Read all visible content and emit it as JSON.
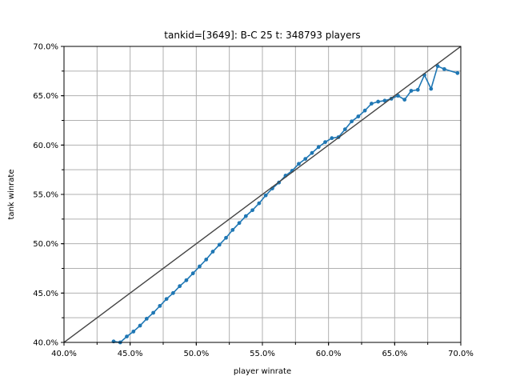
{
  "chart_data": {
    "type": "line",
    "title": "tankid=[3649]: B-C 25 t: 348793 players",
    "xlabel": "player winrate",
    "ylabel": "tank winrate",
    "xlim": [
      0.4,
      0.7
    ],
    "ylim": [
      0.4,
      0.7
    ],
    "x_ticks": [
      0.4,
      0.45,
      0.5,
      0.55,
      0.6,
      0.65,
      0.7
    ],
    "x_tick_labels": [
      "40.0%",
      "45.0%",
      "50.0%",
      "55.0%",
      "60.0%",
      "65.0%",
      "70.0%"
    ],
    "y_ticks": [
      0.4,
      0.45,
      0.5,
      0.55,
      0.6,
      0.65,
      0.7
    ],
    "y_tick_labels": [
      "40.0%",
      "45.0%",
      "50.0%",
      "55.0%",
      "60.0%",
      "65.0%",
      "70.0%"
    ],
    "grid": true,
    "series": [
      {
        "color": "#1f77b4",
        "marker": "dot",
        "x": [
          0.4375,
          0.4425,
          0.4475,
          0.4525,
          0.4575,
          0.4625,
          0.4675,
          0.4725,
          0.4775,
          0.4825,
          0.4875,
          0.4925,
          0.4975,
          0.5025,
          0.5075,
          0.5125,
          0.5175,
          0.5225,
          0.5275,
          0.5325,
          0.5375,
          0.5425,
          0.5475,
          0.5525,
          0.5575,
          0.5625,
          0.5675,
          0.5725,
          0.5775,
          0.5825,
          0.5875,
          0.5925,
          0.5975,
          0.6025,
          0.6075,
          0.6125,
          0.6175,
          0.6225,
          0.6275,
          0.6325,
          0.6375,
          0.6425,
          0.6475,
          0.6525,
          0.6575,
          0.6625,
          0.6675,
          0.6725,
          0.6775,
          0.6825,
          0.6875,
          0.6975
        ],
        "y": [
          0.401,
          0.4,
          0.406,
          0.411,
          0.417,
          0.424,
          0.43,
          0.437,
          0.444,
          0.45,
          0.457,
          0.463,
          0.47,
          0.477,
          0.484,
          0.492,
          0.499,
          0.506,
          0.514,
          0.521,
          0.528,
          0.534,
          0.541,
          0.549,
          0.556,
          0.562,
          0.569,
          0.574,
          0.581,
          0.586,
          0.592,
          0.598,
          0.603,
          0.607,
          0.608,
          0.616,
          0.624,
          0.629,
          0.635,
          0.642,
          0.644,
          0.645,
          0.647,
          0.65,
          0.646,
          0.655,
          0.656,
          0.671,
          0.657,
          0.68,
          0.677,
          0.673
        ]
      },
      {
        "color": "#444444",
        "marker": "none",
        "x": [
          0.4,
          0.7
        ],
        "y": [
          0.4,
          0.7
        ]
      }
    ]
  }
}
